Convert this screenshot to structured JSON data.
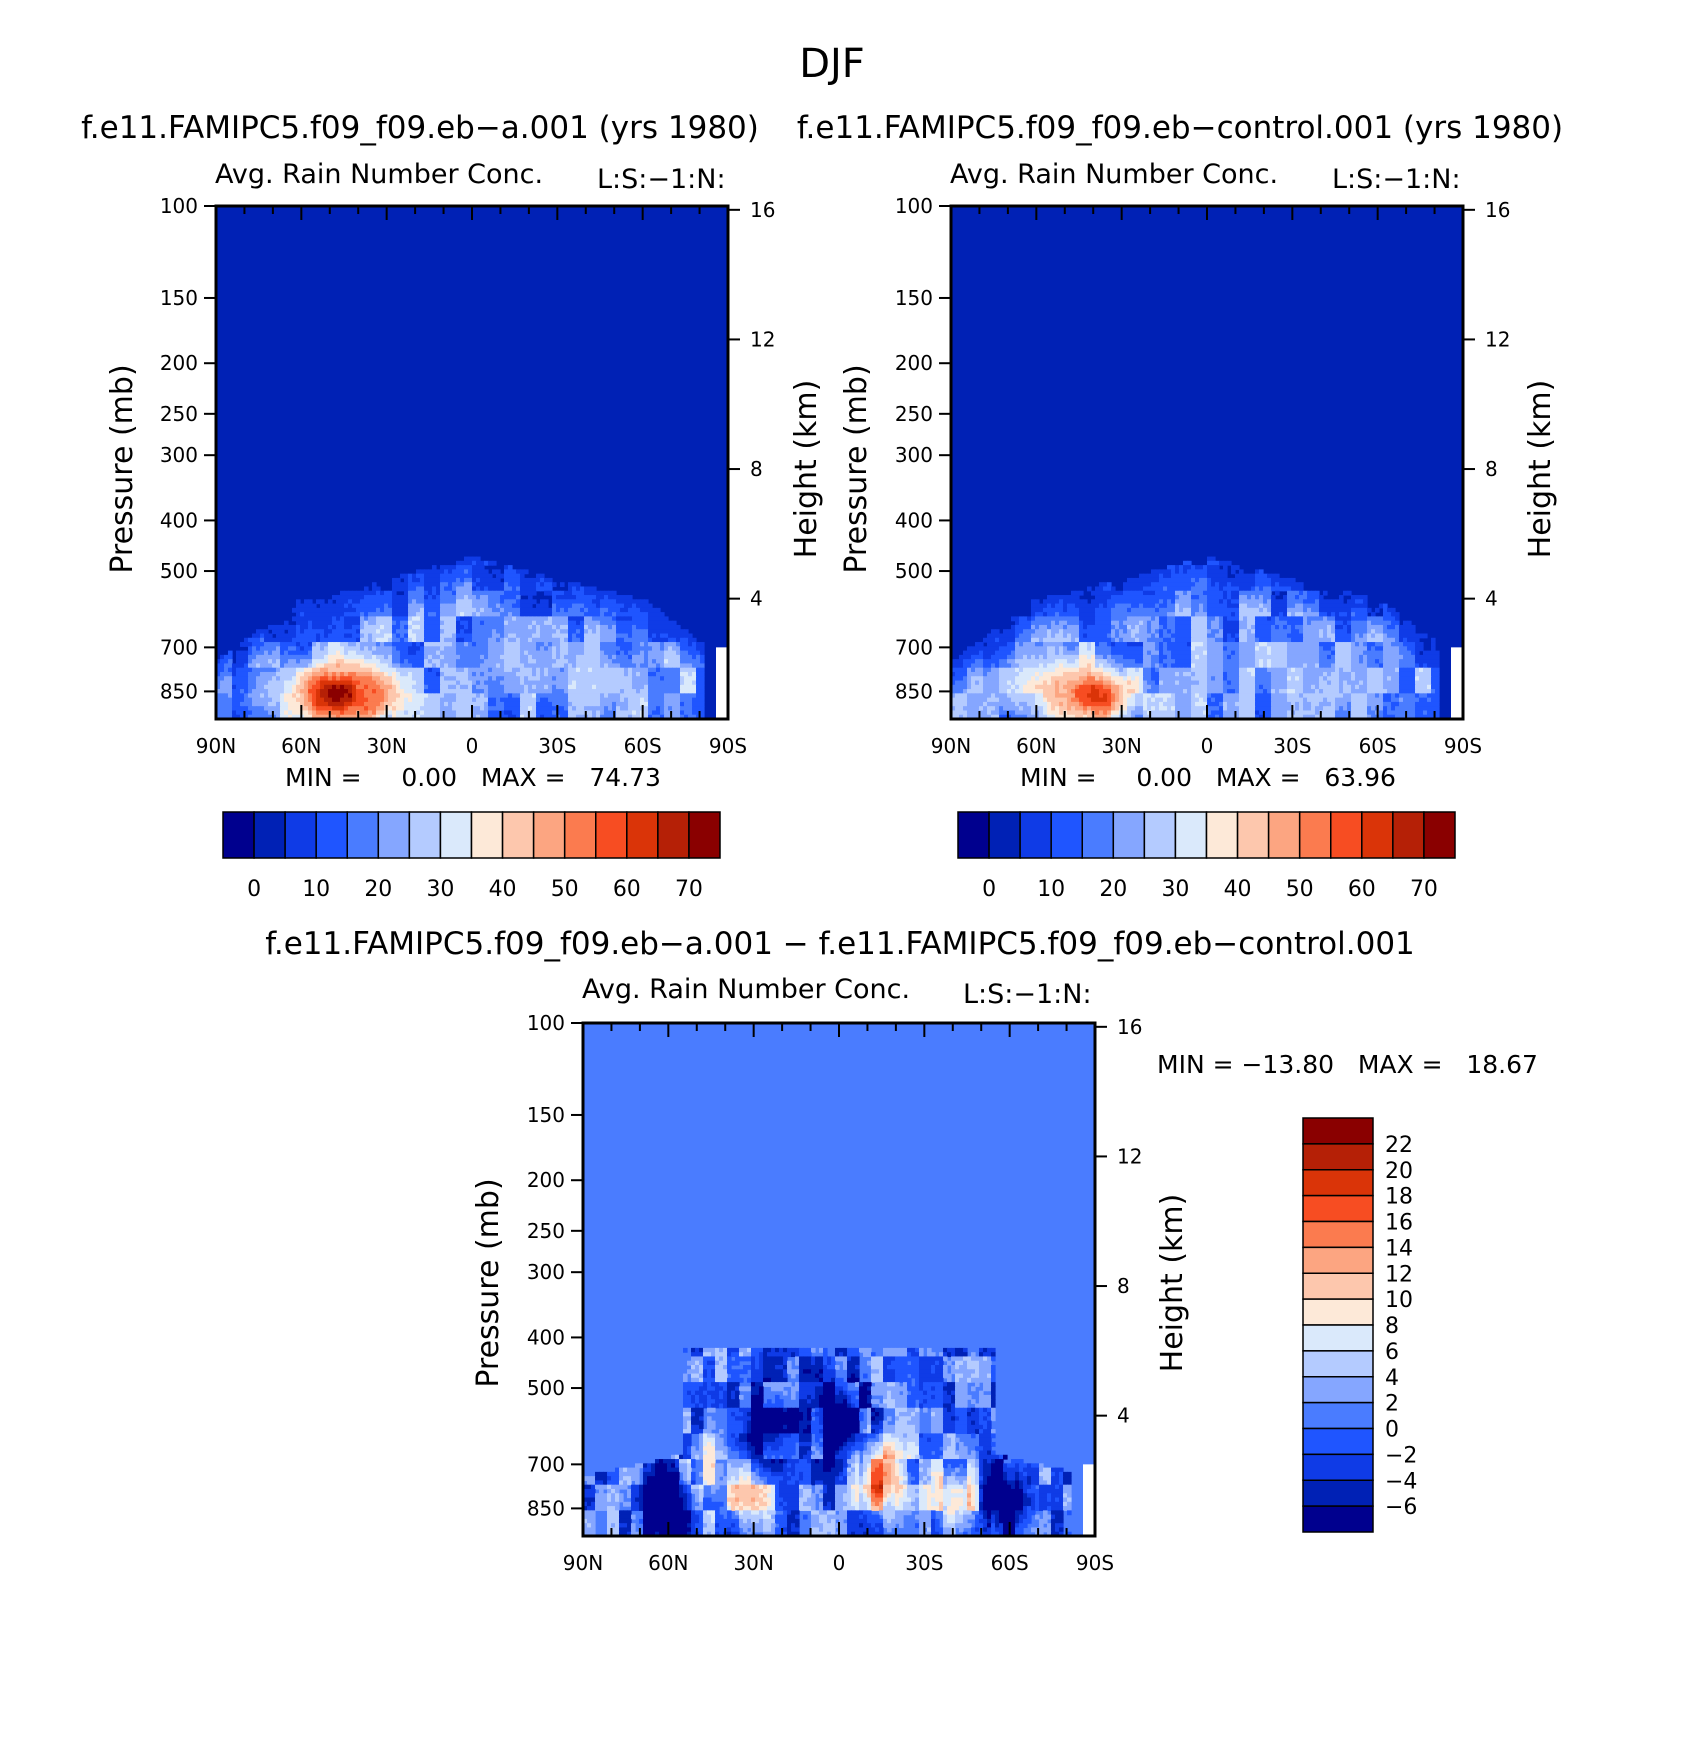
{
  "main_title": "DJF",
  "colors": {
    "base": [
      "#00008e",
      "#0021b5",
      "#0f3be6",
      "#1f55ff",
      "#4a7cff",
      "#85a6ff",
      "#b4cbff",
      "#dae9fb",
      "#fde9d8",
      "#fdc7ad",
      "#fca581",
      "#fb7b4f",
      "#f74d22",
      "#da3408",
      "#b52006",
      "#8a0000"
    ],
    "diff": [
      "#00008e",
      "#0021b5",
      "#0f3be6",
      "#1f55ff",
      "#4a7cff",
      "#85a6ff",
      "#b4cbff",
      "#dae9fb",
      "#fde9d8",
      "#fdc7ad",
      "#fca581",
      "#fb7b4f",
      "#f74d22",
      "#da3408",
      "#b52006",
      "#8a0000"
    ]
  },
  "panels": [
    {
      "case_title": "f.e11.FAMIPC5.f09_f09.eb−a.001 (yrs 1980)",
      "var_title": "Avg. Rain Number Conc.",
      "var_code": "L:S:−1:N:",
      "stats": "MIN =     0.00   MAX =   74.73",
      "ylabel": "Pressure (mb)",
      "ylabel_right": "Height (km)"
    },
    {
      "case_title": "f.e11.FAMIPC5.f09_f09.eb−control.001 (yrs 1980)",
      "var_title": "Avg. Rain Number Conc.",
      "var_code": "L:S:−1:N:",
      "stats": "MIN =     0.00   MAX =   63.96",
      "ylabel": "Pressure (mb)",
      "ylabel_right": "Height (km)"
    },
    {
      "case_title": "f.e11.FAMIPC5.f09_f09.eb−a.001 − f.e11.FAMIPC5.f09_f09.eb−control.001",
      "var_title": "Avg. Rain Number Conc.",
      "var_code": "L:S:−1:N:",
      "stats": "MIN = −13.80   MAX =   18.67",
      "ylabel": "Pressure (mb)",
      "ylabel_right": "Height (km)"
    }
  ],
  "chart_data": [
    {
      "type": "heatmap",
      "subtitle": "Avg. Rain Number Conc.",
      "x_ticks": [
        "90N",
        "60N",
        "30N",
        "0",
        "30S",
        "60S",
        "90S"
      ],
      "y_ticks": [
        "100",
        "150",
        "200",
        "250",
        "300",
        "400",
        "500",
        "700",
        "850"
      ],
      "y_right_ticks": [
        "16",
        "12",
        "8",
        "4"
      ],
      "ylim": [
        1000,
        100
      ],
      "y_scale": "log",
      "min": 0.0,
      "max": 74.73,
      "colorbar_labels": [
        "0",
        "10",
        "20",
        "30",
        "40",
        "50",
        "60",
        "70"
      ],
      "features": [
        {
          "lat": 47,
          "p": 860,
          "value": 74
        },
        {
          "lat": 38,
          "p": 860,
          "value": 55
        },
        {
          "lat": 65,
          "p": 850,
          "value": 28
        },
        {
          "lat": -15,
          "p": 760,
          "value": 25
        },
        {
          "lat": -42,
          "p": 800,
          "value": 28
        },
        {
          "lat": -35,
          "p": 760,
          "value": 22
        },
        {
          "lat": -62,
          "p": 830,
          "value": 18
        },
        {
          "lat": 0,
          "p": 650,
          "value": 10
        },
        {
          "lat": -70,
          "p": 560,
          "value": 10
        }
      ]
    },
    {
      "type": "heatmap",
      "subtitle": "Avg. Rain Number Conc.",
      "x_ticks": [
        "90N",
        "60N",
        "30N",
        "0",
        "30S",
        "60S",
        "90S"
      ],
      "y_ticks": [
        "100",
        "150",
        "200",
        "250",
        "300",
        "400",
        "500",
        "700",
        "850"
      ],
      "y_right_ticks": [
        "16",
        "12",
        "8",
        "4"
      ],
      "ylim": [
        1000,
        100
      ],
      "y_scale": "log",
      "min": 0.0,
      "max": 63.96,
      "colorbar_labels": [
        "0",
        "10",
        "20",
        "30",
        "40",
        "50",
        "60",
        "70"
      ],
      "features": [
        {
          "lat": 40,
          "p": 865,
          "value": 62
        },
        {
          "lat": 50,
          "p": 850,
          "value": 45
        },
        {
          "lat": 63,
          "p": 840,
          "value": 28
        },
        {
          "lat": -43,
          "p": 840,
          "value": 26
        },
        {
          "lat": -25,
          "p": 760,
          "value": 20
        },
        {
          "lat": -35,
          "p": 700,
          "value": 14
        },
        {
          "lat": 8,
          "p": 560,
          "value": 12
        },
        {
          "lat": -60,
          "p": 820,
          "value": 16
        }
      ]
    },
    {
      "type": "heatmap",
      "subtitle": "Avg. Rain Number Conc.",
      "x_ticks": [
        "90N",
        "60N",
        "30N",
        "0",
        "30S",
        "60S",
        "90S"
      ],
      "y_ticks": [
        "100",
        "150",
        "200",
        "250",
        "300",
        "400",
        "500",
        "700",
        "850"
      ],
      "y_right_ticks": [
        "16",
        "12",
        "8",
        "4"
      ],
      "ylim": [
        1000,
        100
      ],
      "y_scale": "log",
      "min": -13.8,
      "max": 18.67,
      "colorbar_labels": [
        "22",
        "20",
        "18",
        "16",
        "14",
        "12",
        "10",
        "8",
        "6",
        "4",
        "2",
        "0",
        "−2",
        "−4",
        "−6"
      ],
      "features": [
        {
          "lat": 0,
          "p": 570,
          "value": -12
        },
        {
          "lat": 25,
          "p": 600,
          "value": -9
        },
        {
          "lat": 60,
          "p": 830,
          "value": -12
        },
        {
          "lat": -58,
          "p": 820,
          "value": -12
        },
        {
          "lat": -15,
          "p": 740,
          "value": 16
        },
        {
          "lat": 32,
          "p": 800,
          "value": 10
        },
        {
          "lat": -42,
          "p": 820,
          "value": 12
        },
        {
          "lat": 47,
          "p": 720,
          "value": 6
        }
      ]
    }
  ]
}
